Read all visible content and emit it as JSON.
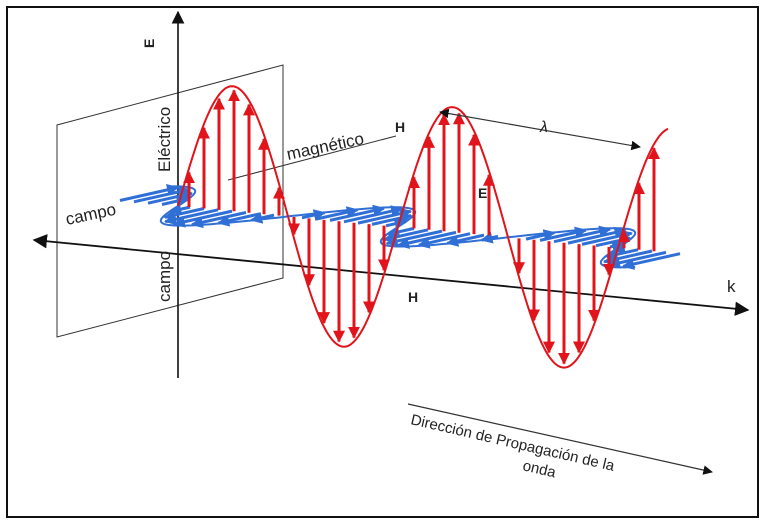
{
  "figure": {
    "axis_e_label": "E",
    "electric_label_1": "Eléctrico",
    "electric_label_2": "campo",
    "magnetic_label_1": "magnético",
    "magnetic_label_2": "campo",
    "h_label_top": "H",
    "e_label_mid": "E",
    "h_label_bottom": "H",
    "lambda_label": "λ",
    "k_label": "k",
    "direction_line_1": "Dirección de Propagación de la",
    "direction_line_2": "onda",
    "colors": {
      "electric": "#e0141a",
      "magnetic": "#2f6fd6",
      "axis": "#111111",
      "plane": "#333333"
    }
  }
}
